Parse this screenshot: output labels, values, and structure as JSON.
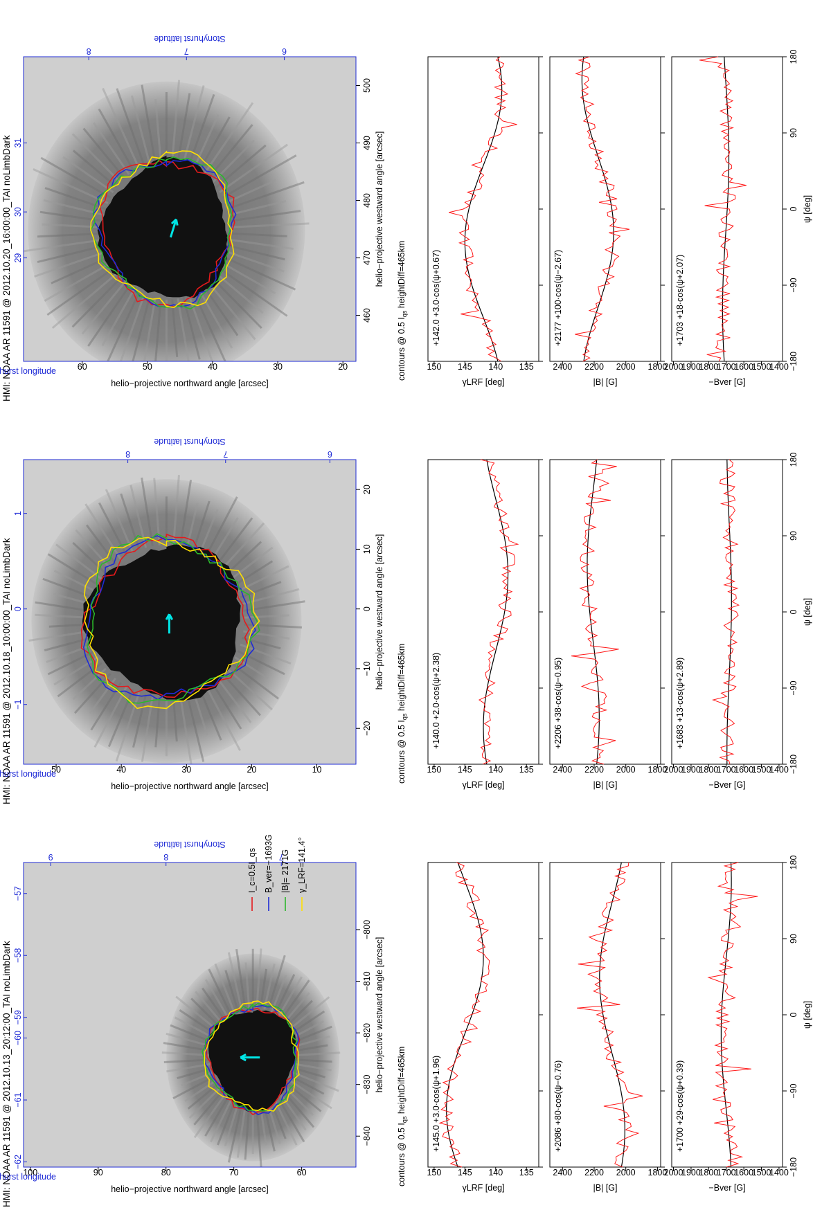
{
  "shared": {
    "y_axis_image": "helio−projective northward angle [arcsec]",
    "x_axis_image": "helio−projective westward angle [arcsec]",
    "stonyhurst_longitude": "Stonyhurst longitude",
    "stonyhurst_latitude": "Stonyhurst latitude",
    "contour_note": "contours @ 0.5 I",
    "contour_note_sub": "qs",
    "contour_note_tail": " heightDiff=465km",
    "psi_label": "ψ [deg]",
    "gamma_label": "γLRF [deg]",
    "B_label": "|B| [G]",
    "Bver_label": "−Bver [G]",
    "legend": [
      "I_c=0.5I_qs",
      "B_ver=−1693G",
      "|B|= 2171G",
      "γ_LRF=141.4°"
    ],
    "colors": {
      "ic": "#e41a1c",
      "bver": "#1f2bd6",
      "babs": "#2bb82b",
      "gamma": "#ffe000",
      "fit": "#000000",
      "data": "#ff1a1a",
      "arrow": "#00e5e5",
      "blue": "#1f2bd6"
    }
  },
  "panels": [
    {
      "title": "HMI: NOAA AR 11591 @ 2012.10.13_20:12:00_TAI noLimbDark",
      "x_range": [
        -846,
        -787
      ],
      "y_range": [
        52,
        101
      ],
      "x_ticks": [
        -840,
        -830,
        -820,
        -810,
        -800
      ],
      "y_ticks": [
        60,
        70,
        80,
        90,
        100
      ],
      "lon_ticks": [
        {
          "label": "−62",
          "pos": -845
        },
        {
          "label": "−61",
          "pos": -833
        },
        {
          "label": "−60",
          "pos": -821
        },
        {
          "label": "−59",
          "pos": -817
        },
        {
          "label": "−58",
          "pos": -805
        },
        {
          "label": "−57",
          "pos": -793
        }
      ],
      "lat_ticks": [
        {
          "label": "9",
          "pos": 97
        },
        {
          "label": "8",
          "pos": 80
        },
        {
          "label": "7",
          "pos": 63
        }
      ],
      "show_legend": true,
      "fits": {
        "gamma": {
          "text": "+145.0  +3.0·cos(ψ+1.96)",
          "offset": 145.0,
          "amp": 3.0,
          "phase": 1.96
        },
        "B": {
          "text": "+2086 +80·cos(ψ−0.76)",
          "offset": 2086,
          "amp": 80,
          "phase": -0.76
        },
        "Bver": {
          "text": "+1700  +29·cos(ψ+0.39)",
          "offset": 1700,
          "amp": 29,
          "phase": 0.39
        }
      }
    },
    {
      "title": "HMI: NOAA AR 11591 @ 2012.10.18_10:00:00_TAI noLimbDark",
      "x_range": [
        -26,
        25
      ],
      "y_range": [
        4,
        55
      ],
      "x_ticks": [
        -20,
        -10,
        0,
        10,
        20
      ],
      "y_ticks": [
        10,
        20,
        30,
        40,
        50
      ],
      "lon_ticks": [
        {
          "label": "−1",
          "pos": -16
        },
        {
          "label": "0",
          "pos": 0
        },
        {
          "label": "1",
          "pos": 16
        }
      ],
      "lat_ticks": [
        {
          "label": "8",
          "pos": 39
        },
        {
          "label": "7",
          "pos": 24
        },
        {
          "label": "6",
          "pos": 8
        }
      ],
      "show_legend": false,
      "fits": {
        "gamma": {
          "text": "+140.0  +2.0·cos(ψ+2.38)",
          "offset": 140.0,
          "amp": 2.0,
          "phase": 2.38
        },
        "B": {
          "text": "+2206  +38·cos(ψ−0.95)",
          "offset": 2206,
          "amp": 38,
          "phase": -0.95
        },
        "Bver": {
          "text": "+1683  +13·cos(ψ+2.89)",
          "offset": 1683,
          "amp": 13,
          "phase": 2.89
        }
      }
    },
    {
      "title": "HMI: NOAA AR 11591 @ 2012.10.20_16:00:00_TAI noLimbDark",
      "x_range": [
        452,
        505
      ],
      "y_range": [
        18,
        69
      ],
      "x_ticks": [
        460,
        470,
        480,
        490,
        500
      ],
      "y_ticks": [
        20,
        30,
        40,
        50,
        60
      ],
      "lon_ticks": [
        {
          "label": "29",
          "pos": 470
        },
        {
          "label": "30",
          "pos": 478
        },
        {
          "label": "31",
          "pos": 490
        }
      ],
      "lat_ticks": [
        {
          "label": "8",
          "pos": 59
        },
        {
          "label": "7",
          "pos": 44
        },
        {
          "label": "6",
          "pos": 29
        }
      ],
      "show_legend": false,
      "fits": {
        "gamma": {
          "text": "+142.0  +3.0·cos(ψ+0.67)",
          "offset": 142.0,
          "amp": 3.0,
          "phase": 0.67
        },
        "B": {
          "text": "+2177  +100·cos(ψ−2.67)",
          "offset": 2177,
          "amp": 100,
          "phase": -2.67
        },
        "Bver": {
          "text": "+1703  +18·cos(ψ+2.07)",
          "offset": 1703,
          "amp": 18,
          "phase": 2.07
        }
      }
    }
  ],
  "chart_data": [
    {
      "type": "line",
      "title": "HMI: NOAA AR 11591 @ 2012.10.13_20:12:00_TAI noLimbDark",
      "xlabel": "ψ [deg]",
      "ylabel": "γLRF [deg]",
      "xlim": [
        -180,
        180
      ],
      "ylim": [
        133,
        151
      ],
      "series": [
        {
          "name": "fit",
          "formula": "145.0+3.0*cos(psi+1.96)"
        }
      ]
    },
    {
      "type": "line",
      "title": "HMI: NOAA AR 11591 @ 2012.10.13_20:12:00_TAI noLimbDark",
      "xlabel": "ψ [deg]",
      "ylabel": "|B| [G]",
      "xlim": [
        -180,
        180
      ],
      "ylim": [
        1780,
        2480
      ],
      "series": [
        {
          "name": "fit",
          "formula": "2086+80*cos(psi-0.76)"
        }
      ]
    },
    {
      "type": "line",
      "title": "HMI: NOAA AR 11591 @ 2012.10.13_20:12:00_TAI noLimbDark",
      "xlabel": "ψ [deg]",
      "ylabel": "−Bver [G]",
      "xlim": [
        -180,
        180
      ],
      "ylim": [
        1380,
        2010
      ],
      "series": [
        {
          "name": "fit",
          "formula": "1700+29*cos(psi+0.39)"
        }
      ]
    },
    {
      "type": "line",
      "title": "HMI: NOAA AR 11591 @ 2012.10.18_10:00:00_TAI noLimbDark",
      "xlabel": "ψ [deg]",
      "ylabel": "γLRF [deg]",
      "xlim": [
        -180,
        180
      ],
      "ylim": [
        133,
        151
      ],
      "series": [
        {
          "name": "fit",
          "formula": "140.0+2.0*cos(psi+2.38)"
        }
      ]
    },
    {
      "type": "line",
      "title": "HMI: NOAA AR 11591 @ 2012.10.18_10:00:00_TAI noLimbDark",
      "xlabel": "ψ [deg]",
      "ylabel": "|B| [G]",
      "xlim": [
        -180,
        180
      ],
      "ylim": [
        1780,
        2480
      ],
      "series": [
        {
          "name": "fit",
          "formula": "2206+38*cos(psi-0.95)"
        }
      ]
    },
    {
      "type": "line",
      "title": "HMI: NOAA AR 11591 @ 2012.10.18_10:00:00_TAI noLimbDark",
      "xlabel": "ψ [deg]",
      "ylabel": "−Bver [G]",
      "xlim": [
        -180,
        180
      ],
      "ylim": [
        1380,
        2010
      ],
      "series": [
        {
          "name": "fit",
          "formula": "1683+13*cos(psi+2.89)"
        }
      ]
    },
    {
      "type": "line",
      "title": "HMI: NOAA AR 11591 @ 2012.10.20_16:00:00_TAI noLimbDark",
      "xlabel": "ψ [deg]",
      "ylabel": "γLRF [deg]",
      "xlim": [
        -180,
        180
      ],
      "ylim": [
        133,
        151
      ],
      "series": [
        {
          "name": "fit",
          "formula": "142.0+3.0*cos(psi+0.67)"
        }
      ]
    },
    {
      "type": "line",
      "title": "HMI: NOAA AR 11591 @ 2012.10.20_16:00:00_TAI noLimbDark",
      "xlabel": "ψ [deg]",
      "ylabel": "|B| [G]",
      "xlim": [
        -180,
        180
      ],
      "ylim": [
        1780,
        2480
      ],
      "series": [
        {
          "name": "fit",
          "formula": "2177+100*cos(psi-2.67)"
        }
      ]
    },
    {
      "type": "line",
      "title": "HMI: NOAA AR 11591 @ 2012.10.20_16:00:00_TAI noLimbDark",
      "xlabel": "ψ [deg]",
      "ylabel": "−Bver [G]",
      "xlim": [
        -180,
        180
      ],
      "ylim": [
        1380,
        2010
      ],
      "series": [
        {
          "name": "fit",
          "formula": "1703+18*cos(psi+2.07)"
        }
      ]
    }
  ]
}
